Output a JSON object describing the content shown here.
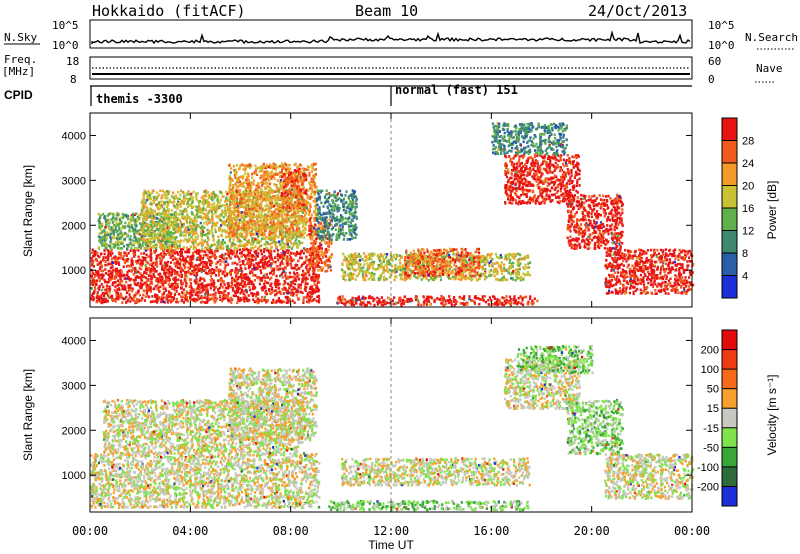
{
  "header": {
    "station": "Hokkaido (fitACF)",
    "beam": "Beam 10",
    "date": "24/Oct/2013"
  },
  "strip": {
    "nsky_label": "N.Sky",
    "nsky_ticks": [
      "10^5",
      "10^0"
    ],
    "nsearch_label": "N.Search",
    "freq_label": "Freq.",
    "freq_unit": "[MHz]",
    "freq_ticks": [
      "18",
      "8"
    ],
    "nave_ticks": [
      "60",
      "0"
    ],
    "nave_label": "Nave",
    "cpid_label": "CPID",
    "cpid_segments": [
      {
        "start_hour": 0,
        "label": "themis -3300"
      },
      {
        "start_hour": 12,
        "label": "normal (fast) 151"
      }
    ]
  },
  "chart_data": [
    {
      "type": "heatmap",
      "name": "power",
      "xlabel": "Time UT",
      "ylabel": "Slant Range [km]",
      "xlim_hours": [
        0,
        24
      ],
      "ylim_km": [
        180,
        4500
      ],
      "xticks": [
        "00:00",
        "04:00",
        "08:00",
        "12:00",
        "16:00",
        "20:00",
        "00:00"
      ],
      "yticks": [
        1000,
        2000,
        3000,
        4000
      ],
      "colorbar": {
        "label": "Power [dB]",
        "ticks": [
          "4",
          "8",
          "12",
          "16",
          "20",
          "24",
          "28"
        ],
        "colors": [
          "#1d2fd6",
          "#2a5fa8",
          "#3f8a6e",
          "#5fb04a",
          "#c8c234",
          "#f39a2b",
          "#f25a1e",
          "#e81414"
        ]
      },
      "regions": [
        {
          "t0": 0.0,
          "t1": 9.1,
          "r0": 300,
          "r1": 1500,
          "level": 7
        },
        {
          "t0": 0.3,
          "t1": 3.5,
          "r0": 1500,
          "r1": 2300,
          "level": 3
        },
        {
          "t0": 2.0,
          "t1": 8.5,
          "r0": 1500,
          "r1": 2800,
          "level": 4
        },
        {
          "t0": 5.5,
          "t1": 9.0,
          "r0": 1800,
          "r1": 3400,
          "level": 5
        },
        {
          "t0": 7.6,
          "t1": 8.6,
          "r0": 2400,
          "r1": 3300,
          "level": 6
        },
        {
          "t0": 8.7,
          "t1": 9.6,
          "r0": 1000,
          "r1": 2200,
          "level": 6
        },
        {
          "t0": 9.0,
          "t1": 10.6,
          "r0": 1700,
          "r1": 2800,
          "level": 2
        },
        {
          "t0": 9.8,
          "t1": 17.8,
          "r0": 250,
          "r1": 450,
          "level": 7
        },
        {
          "t0": 10.0,
          "t1": 17.5,
          "r0": 800,
          "r1": 1400,
          "level": 4
        },
        {
          "t0": 12.5,
          "t1": 15.5,
          "r0": 900,
          "r1": 1500,
          "level": 6
        },
        {
          "t0": 16.5,
          "t1": 19.5,
          "r0": 2500,
          "r1": 3600,
          "level": 7
        },
        {
          "t0": 19.0,
          "t1": 21.2,
          "r0": 1500,
          "r1": 2700,
          "level": 7
        },
        {
          "t0": 20.5,
          "t1": 24.0,
          "r0": 500,
          "r1": 1500,
          "level": 7
        },
        {
          "t0": 16.0,
          "t1": 19.0,
          "r0": 3600,
          "r1": 4300,
          "level": 2
        }
      ]
    },
    {
      "type": "heatmap",
      "name": "velocity",
      "xlabel": "Time UT",
      "ylabel": "Slant Range [km]",
      "xlim_hours": [
        0,
        24
      ],
      "ylim_km": [
        180,
        4500
      ],
      "xticks": [
        "00:00",
        "04:00",
        "08:00",
        "12:00",
        "16:00",
        "20:00",
        "00:00"
      ],
      "yticks": [
        1000,
        2000,
        3000,
        4000
      ],
      "colorbar": {
        "label": "Velocity [m s⁻¹]",
        "ticks": [
          "200",
          "100",
          "50",
          "15",
          "-15",
          "-50",
          "-100",
          "-200"
        ],
        "colors": [
          "#1d2fd6",
          "#2f6a3a",
          "#3aa63a",
          "#7fe34e",
          "#c8c8c0",
          "#f6a12b",
          "#f66a18",
          "#ef3a12",
          "#e10b0b"
        ]
      },
      "regions": [
        {
          "t0": 0.0,
          "t1": 9.1,
          "r0": 300,
          "r1": 1500,
          "level": 4
        },
        {
          "t0": 0.5,
          "t1": 8.5,
          "r0": 1500,
          "r1": 2700,
          "level": 4
        },
        {
          "t0": 5.5,
          "t1": 9.0,
          "r0": 1800,
          "r1": 3400,
          "level": 4
        },
        {
          "t0": 9.5,
          "t1": 17.5,
          "r0": 250,
          "r1": 450,
          "level": 3
        },
        {
          "t0": 10.0,
          "t1": 17.5,
          "r0": 800,
          "r1": 1400,
          "level": 4
        },
        {
          "t0": 16.5,
          "t1": 19.5,
          "r0": 2500,
          "r1": 3600,
          "level": 4
        },
        {
          "t0": 19.0,
          "t1": 21.2,
          "r0": 1500,
          "r1": 2700,
          "level": 3
        },
        {
          "t0": 20.5,
          "t1": 24.0,
          "r0": 500,
          "r1": 1500,
          "level": 4
        },
        {
          "t0": 17.0,
          "t1": 20.0,
          "r0": 3300,
          "r1": 3900,
          "level": 3
        }
      ]
    }
  ]
}
